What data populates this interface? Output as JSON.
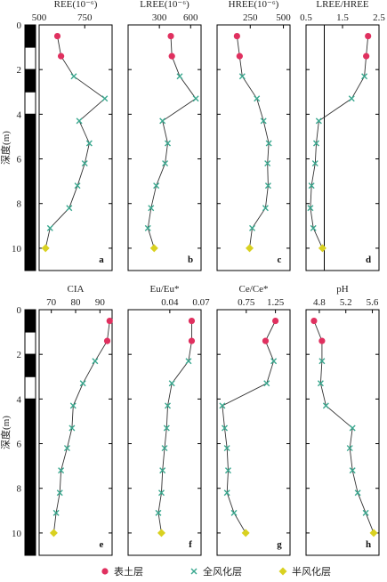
{
  "y_axis": {
    "label": "深度(m)",
    "ticks": [
      "0",
      "2",
      "4",
      "6",
      "8",
      "10"
    ],
    "range": [
      0,
      11
    ]
  },
  "legend": [
    {
      "label": "表土层",
      "color": "#e0305f",
      "shape": "circle"
    },
    {
      "label": "全风化层",
      "color": "#3aa88f",
      "shape": "cross"
    },
    {
      "label": "半风化层",
      "color": "#d9d120",
      "shape": "diamond"
    }
  ],
  "depths": [
    0.5,
    1.4,
    2.3,
    3.3,
    4.3,
    5.3,
    6.2,
    7.2,
    8.2,
    9.1,
    10.0
  ],
  "chart_data": [
    {
      "type": "line",
      "letter": "a",
      "title": "REE(10⁻⁶)",
      "xlim": [
        500,
        900
      ],
      "xticks": [
        500,
        750
      ],
      "tick_labels": [
        "500",
        "750"
      ],
      "refline": null,
      "values": [
        600,
        620,
        690,
        860,
        720,
        775,
        750,
        710,
        665,
        560,
        535
      ]
    },
    {
      "type": "line",
      "letter": "b",
      "title": "LREE(10⁻⁶)",
      "xlim": [
        0,
        700
      ],
      "xticks": [
        300,
        600
      ],
      "tick_labels": [
        "300",
        "600"
      ],
      "refline": null,
      "values": [
        410,
        420,
        495,
        650,
        330,
        380,
        355,
        270,
        220,
        190,
        250
      ]
    },
    {
      "type": "line",
      "letter": "c",
      "title": "HREE(10⁻⁶)",
      "xlim": [
        0,
        550
      ],
      "xticks": [
        250,
        500
      ],
      "tick_labels": [
        "250",
        "500"
      ],
      "refline": null,
      "values": [
        150,
        170,
        190,
        300,
        350,
        390,
        380,
        385,
        365,
        265,
        245
      ]
    },
    {
      "type": "line",
      "letter": "d",
      "title": "LREE/HREE",
      "xlim": [
        0.5,
        2.5
      ],
      "xticks": [
        0.5,
        1.5,
        2.5
      ],
      "tick_labels": [
        "0.5",
        "1.5",
        "2.5"
      ],
      "refline": 1.0,
      "values": [
        2.2,
        2.15,
        2.1,
        1.75,
        0.85,
        0.78,
        0.75,
        0.65,
        0.62,
        0.7,
        0.95
      ]
    },
    {
      "type": "line",
      "letter": "e",
      "title": "CIA",
      "xlim": [
        65,
        95
      ],
      "xticks": [
        70,
        80,
        90
      ],
      "tick_labels": [
        "70",
        "80",
        "90"
      ],
      "refline": null,
      "values": [
        94,
        93,
        88,
        83,
        79,
        78.5,
        76.5,
        74,
        73.5,
        72,
        71
      ]
    },
    {
      "type": "line",
      "letter": "f",
      "title": "Eu/Eu*",
      "xlim": [
        0,
        0.07
      ],
      "xticks": [
        0.04,
        0.07
      ],
      "tick_labels": [
        "0.04",
        "0.07"
      ],
      "refline": null,
      "values": [
        0.061,
        0.061,
        0.058,
        0.042,
        0.038,
        0.037,
        0.035,
        0.033,
        0.032,
        0.029,
        0.032
      ]
    },
    {
      "type": "line",
      "letter": "g",
      "title": "Ce/Ce*",
      "xlim": [
        0.25,
        1.5
      ],
      "xticks": [
        0.75,
        1.25
      ],
      "tick_labels": [
        "0.75",
        "1.25"
      ],
      "refline": null,
      "values": [
        1.25,
        1.08,
        1.22,
        1.1,
        0.34,
        0.38,
        0.42,
        0.44,
        0.42,
        0.54,
        0.74
      ]
    },
    {
      "type": "line",
      "letter": "h",
      "title": "pH",
      "xlim": [
        4.6,
        5.7
      ],
      "xticks": [
        4.8,
        5.2,
        5.6
      ],
      "tick_labels": [
        "4.8",
        "5.2",
        "5.6"
      ],
      "refline": null,
      "values": [
        4.72,
        4.84,
        4.84,
        4.82,
        4.9,
        5.3,
        5.26,
        5.3,
        5.38,
        5.5,
        5.62
      ]
    }
  ]
}
